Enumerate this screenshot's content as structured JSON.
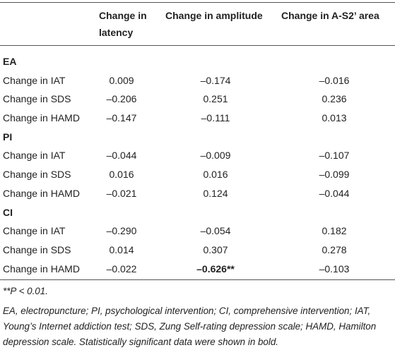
{
  "table": {
    "columns": [
      "Change in latency",
      "Change in amplitude",
      "Change in A-S2’ area"
    ],
    "groups": [
      {
        "label": "EA",
        "rows": [
          [
            "Change in IAT",
            "0.009",
            "–0.174",
            "–0.016"
          ],
          [
            "Change in SDS",
            "–0.206",
            "0.251",
            "0.236"
          ],
          [
            "Change in HAMD",
            "–0.147",
            "–0.111",
            "0.013"
          ]
        ]
      },
      {
        "label": "PI",
        "rows": [
          [
            "Change in IAT",
            "–0.044",
            "–0.009",
            "–0.107"
          ],
          [
            "Change in SDS",
            "0.016",
            "0.016",
            "–0.099"
          ],
          [
            "Change in HAMD",
            "–0.021",
            "0.124",
            "–0.044"
          ]
        ]
      },
      {
        "label": "CI",
        "rows": [
          [
            "Change in IAT",
            "–0.290",
            "–0.054",
            "0.182"
          ],
          [
            "Change in SDS",
            "0.014",
            "0.307",
            "0.278"
          ],
          [
            "Change in HAMD",
            "–0.022",
            "–0.626**",
            "–0.103"
          ]
        ]
      }
    ],
    "bold_cell": [
      2,
      2,
      2
    ]
  },
  "footnotes": [
    "**P < 0.01.",
    "EA, electropuncture; PI, psychological intervention; CI, comprehensive intervention; IAT, Young’s Internet addiction test; SDS, Zung Self-rating depression scale; HAMD, Hamilton depression scale. Statistically significant data were shown in bold."
  ]
}
